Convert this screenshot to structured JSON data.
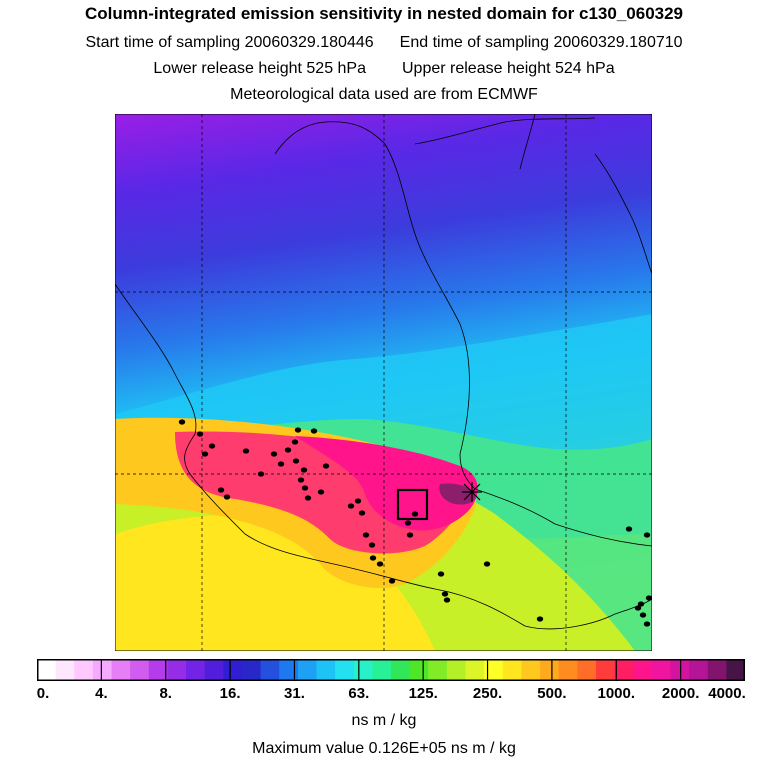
{
  "header": {
    "title": "Column-integrated emission sensitivity in nested domain for c130_060329",
    "line_start": "Start time of sampling 20060329.180446",
    "line_end": "End time of sampling 20060329.180710",
    "line_lower": "Lower release height  525 hPa",
    "line_upper": "Upper release height  524 hPa",
    "line_met": "Meteorological data used are from ECMWF"
  },
  "colorbar": {
    "colors": [
      "#ffffff",
      "#ffe6ff",
      "#ffc8ff",
      "#f5aaff",
      "#e67ff5",
      "#d25cf0",
      "#b43ceb",
      "#962de6",
      "#7323e6",
      "#501edc",
      "#321ed2",
      "#2828c8",
      "#2350dc",
      "#1e78f0",
      "#1ea0f5",
      "#1ec3f5",
      "#23e1f0",
      "#28f0c8",
      "#28f096",
      "#32e65a",
      "#50e628",
      "#82eb28",
      "#b4f028",
      "#dcf528",
      "#ffff28",
      "#ffe61e",
      "#ffc81e",
      "#ffaa1e",
      "#ff8c1e",
      "#ff6e28",
      "#ff3c3c",
      "#ff1e64",
      "#ff148c",
      "#f014a0",
      "#d214a0",
      "#b41496",
      "#82146e",
      "#461446"
    ],
    "tick_labels": [
      "0.",
      "4.",
      "8.",
      "16.",
      "31.",
      "63.",
      "125.",
      "250.",
      "500.",
      "1000.",
      "2000.",
      "4000."
    ],
    "unit": "ns m / kg",
    "max_value_text": "Maximum value  0.126E+05 ns m / kg"
  },
  "map": {
    "background_gradient_colors": [
      "#9b1ee6",
      "#5a28e6",
      "#3c3cdc",
      "#2878eb",
      "#1ec8f5",
      "#46e68c",
      "#c8f028",
      "#ffe61e"
    ],
    "plume_colors": [
      "#ffc81e",
      "#ff8c1e",
      "#ff3c6e",
      "#ff148c",
      "#8c1e6e"
    ],
    "observation_marker": "open-square",
    "release_marker": "plus-cross"
  }
}
